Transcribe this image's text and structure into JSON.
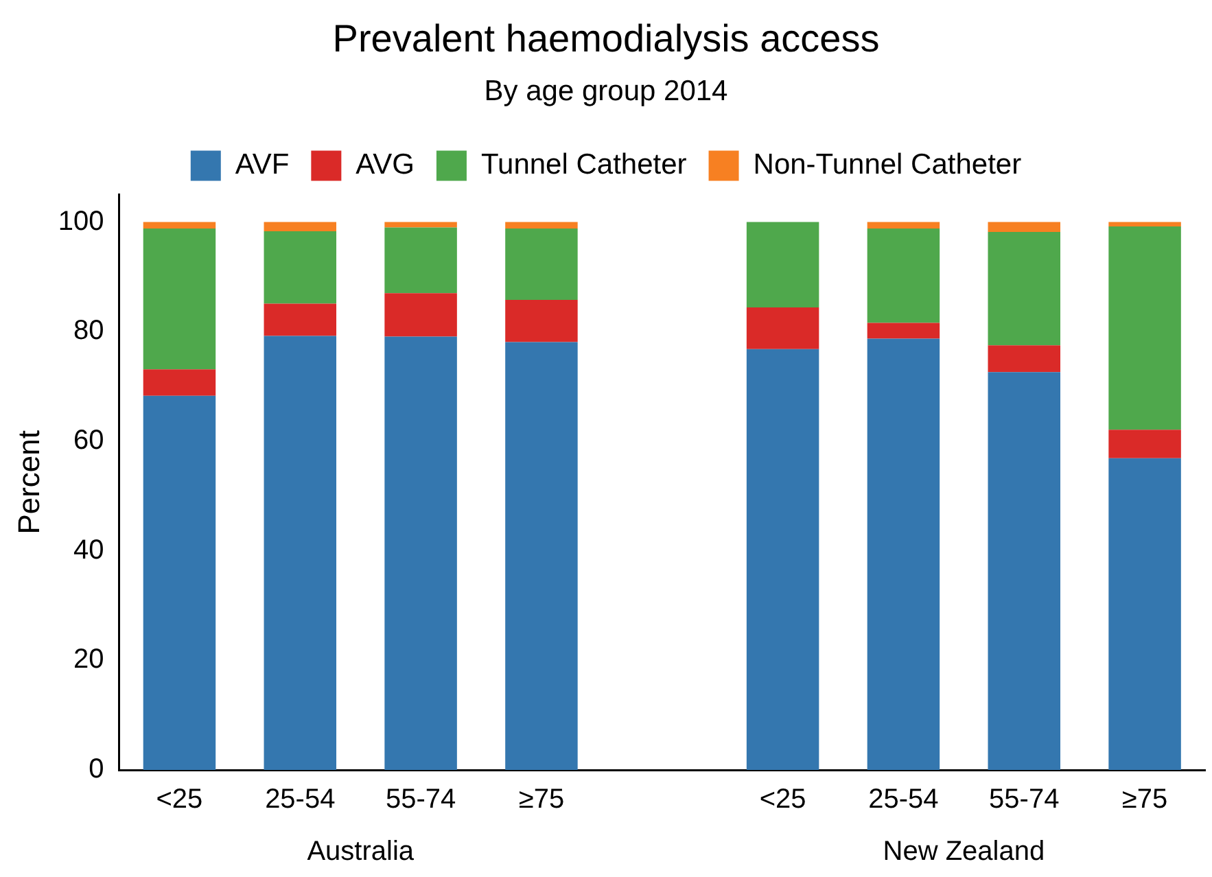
{
  "chart_data": {
    "type": "bar",
    "title": "Prevalent haemodialysis access",
    "subtitle": "By age group 2014",
    "ylabel": "Percent",
    "categories": [
      "<25",
      "25-54",
      "55-74",
      "≥75",
      null,
      "<25",
      "25-54",
      "55-74",
      "≥75"
    ],
    "stacked": true,
    "legend": "top",
    "grid": false,
    "ylim": [
      0,
      105
    ],
    "yticks": [
      0,
      20,
      40,
      60,
      80,
      100
    ],
    "annotations": [
      "Australia",
      "New Zealand"
    ],
    "series": [
      {
        "name": "AVF",
        "color": "#3477af",
        "values": [
          68.3,
          79.2,
          79.1,
          78.1,
          null,
          76.8,
          78.7,
          72.6,
          56.9
        ]
      },
      {
        "name": "AVG",
        "color": "#da2a28",
        "values": [
          4.8,
          5.9,
          7.9,
          7.7,
          null,
          7.6,
          2.9,
          4.9,
          5.2
        ]
      },
      {
        "name": "Tunnel Catheter",
        "color": "#4fa84c",
        "values": [
          25.7,
          13.2,
          12.0,
          13.0,
          null,
          15.6,
          17.2,
          20.7,
          37.1
        ]
      },
      {
        "name": "Non-Tunnel Catheter",
        "color": "#f78022",
        "values": [
          1.2,
          1.7,
          1.0,
          1.2,
          null,
          0,
          1.2,
          1.8,
          0.8
        ]
      }
    ]
  }
}
